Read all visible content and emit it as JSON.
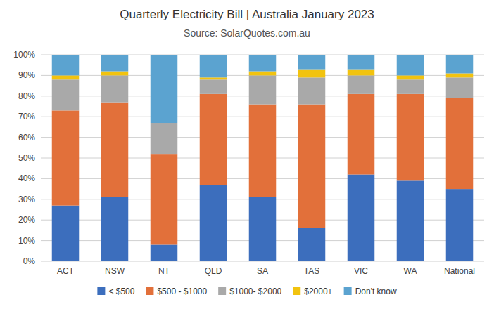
{
  "chart_data": {
    "type": "bar",
    "stacked": true,
    "title": "Quarterly Electricity Bill | Australia January 2023",
    "subtitle": "Source: SolarQuotes.com.au",
    "categories": [
      "ACT",
      "NSW",
      "NT",
      "QLD",
      "SA",
      "TAS",
      "VIC",
      "WA",
      "National"
    ],
    "series": [
      {
        "name": "< $500",
        "color": "#3C6EBD",
        "values": [
          27,
          31,
          8,
          37,
          31,
          16,
          42,
          39,
          35
        ]
      },
      {
        "name": "$500 - $1000",
        "color": "#E2703A",
        "values": [
          46,
          46,
          44,
          44,
          45,
          60,
          39,
          42,
          44
        ]
      },
      {
        "name": "$1000- $2000",
        "color": "#A9A9A9",
        "values": [
          15,
          13,
          15,
          7,
          14,
          13,
          9,
          7,
          10
        ]
      },
      {
        "name": "$2000+",
        "color": "#F2C30F",
        "values": [
          2,
          2,
          0,
          1,
          2,
          4,
          3,
          2,
          2
        ]
      },
      {
        "name": "Don't know",
        "color": "#5BA3D0",
        "values": [
          10,
          8,
          33,
          11,
          8,
          7,
          7,
          10,
          9
        ]
      }
    ],
    "ylim": [
      0,
      100
    ],
    "yticks": [
      {
        "value": 0,
        "label": "0%"
      },
      {
        "value": 10,
        "label": "10%"
      },
      {
        "value": 20,
        "label": "20%"
      },
      {
        "value": 30,
        "label": "30%"
      },
      {
        "value": 40,
        "label": "40%"
      },
      {
        "value": 50,
        "label": "50%"
      },
      {
        "value": 60,
        "label": "60%"
      },
      {
        "value": 70,
        "label": "70%"
      },
      {
        "value": 80,
        "label": "80%"
      },
      {
        "value": 90,
        "label": "90%"
      },
      {
        "value": 100,
        "label": "100%"
      }
    ],
    "grid": true,
    "legend": "bottom"
  }
}
